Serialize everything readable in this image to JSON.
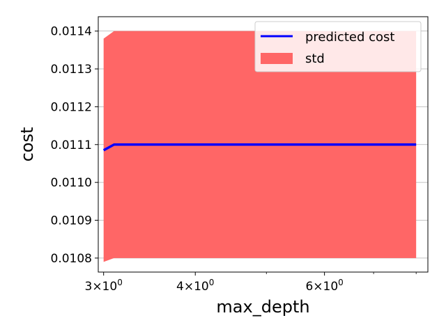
{
  "chart_data": {
    "type": "line",
    "title": "",
    "xlabel": "max_depth",
    "ylabel": "cost",
    "xscale": "log",
    "xlim": [
      2.95,
      8.3
    ],
    "ylim": [
      0.010763,
      0.011438
    ],
    "x_ticks": [
      {
        "value": 3,
        "base": "3",
        "exp": "0"
      },
      {
        "value": 4,
        "base": "4",
        "exp": "0"
      },
      {
        "value": 6,
        "base": "6",
        "exp": "0"
      }
    ],
    "x_minor_ticks": [
      5,
      7,
      8
    ],
    "y_ticks": [
      {
        "value": 0.0108,
        "label": "0.0108"
      },
      {
        "value": 0.0109,
        "label": "0.0109"
      },
      {
        "value": 0.011,
        "label": "0.0110"
      },
      {
        "value": 0.0111,
        "label": "0.0111"
      },
      {
        "value": 0.0112,
        "label": "0.0112"
      },
      {
        "value": 0.0113,
        "label": "0.0113"
      },
      {
        "value": 0.0114,
        "label": "0.0114"
      }
    ],
    "grid": "y",
    "legend_position": "top-right",
    "series": [
      {
        "name": "predicted cost",
        "kind": "line",
        "color": "#0000ff",
        "x": [
          3.0,
          3.1,
          8.0
        ],
        "y": [
          0.011085,
          0.0111,
          0.0111
        ]
      },
      {
        "name": "std",
        "kind": "band",
        "color": "#ff6666",
        "x": [
          3.0,
          3.1,
          8.0
        ],
        "lower": [
          0.01079,
          0.0108,
          0.0108
        ],
        "upper": [
          0.01138,
          0.0114,
          0.0114
        ]
      }
    ]
  }
}
